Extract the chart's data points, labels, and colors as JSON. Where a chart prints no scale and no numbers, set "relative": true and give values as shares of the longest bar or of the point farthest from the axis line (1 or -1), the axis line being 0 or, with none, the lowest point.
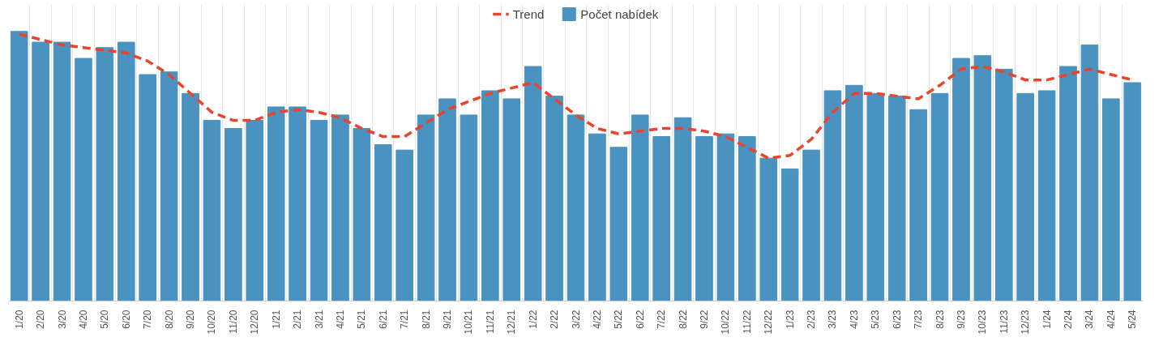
{
  "chart_data": {
    "type": "bar",
    "relative": true,
    "grid": "x",
    "legend": "top",
    "categories": [
      "1/20",
      "2/20",
      "3/20",
      "4/20",
      "5/20",
      "6/20",
      "7/20",
      "8/20",
      "9/20",
      "10/20",
      "11/20",
      "12/20",
      "1/21",
      "2/21",
      "3/21",
      "4/21",
      "5/21",
      "6/21",
      "7/21",
      "8/21",
      "9/21",
      "10/21",
      "11/21",
      "12/21",
      "1/22",
      "2/22",
      "3/22",
      "4/22",
      "5/22",
      "6/22",
      "7/22",
      "8/22",
      "9/22",
      "10/22",
      "11/22",
      "12/22",
      "1/23",
      "2/23",
      "3/23",
      "4/23",
      "5/23",
      "6/23",
      "7/23",
      "8/23",
      "9/23",
      "10/23",
      "11/23",
      "12/23",
      "1/24",
      "2/24",
      "3/24",
      "4/24",
      "5/24"
    ],
    "series": [
      {
        "name": "Trend",
        "type": "line",
        "line_style": "dashed",
        "color": "#e8452c",
        "values": [
          0.99,
          0.97,
          0.95,
          0.94,
          0.93,
          0.92,
          0.89,
          0.84,
          0.77,
          0.7,
          0.67,
          0.67,
          0.7,
          0.71,
          0.7,
          0.68,
          0.64,
          0.61,
          0.61,
          0.66,
          0.71,
          0.74,
          0.77,
          0.79,
          0.81,
          0.75,
          0.69,
          0.64,
          0.62,
          0.63,
          0.64,
          0.64,
          0.63,
          0.61,
          0.57,
          0.53,
          0.54,
          0.6,
          0.7,
          0.77,
          0.77,
          0.76,
          0.75,
          0.8,
          0.86,
          0.87,
          0.85,
          0.82,
          0.82,
          0.84,
          0.86,
          0.84,
          0.82
        ]
      },
      {
        "name": "Počet nabídek",
        "color": "#4a92bf",
        "values": [
          1.0,
          0.96,
          0.96,
          0.9,
          0.94,
          0.96,
          0.84,
          0.85,
          0.77,
          0.67,
          0.64,
          0.67,
          0.72,
          0.72,
          0.67,
          0.69,
          0.64,
          0.58,
          0.56,
          0.69,
          0.75,
          0.69,
          0.78,
          0.75,
          0.87,
          0.76,
          0.69,
          0.62,
          0.57,
          0.69,
          0.61,
          0.68,
          0.61,
          0.62,
          0.61,
          0.53,
          0.49,
          0.56,
          0.78,
          0.8,
          0.77,
          0.76,
          0.71,
          0.77,
          0.9,
          0.91,
          0.86,
          0.77,
          0.78,
          0.87,
          0.95,
          0.75,
          0.81
        ]
      }
    ]
  }
}
